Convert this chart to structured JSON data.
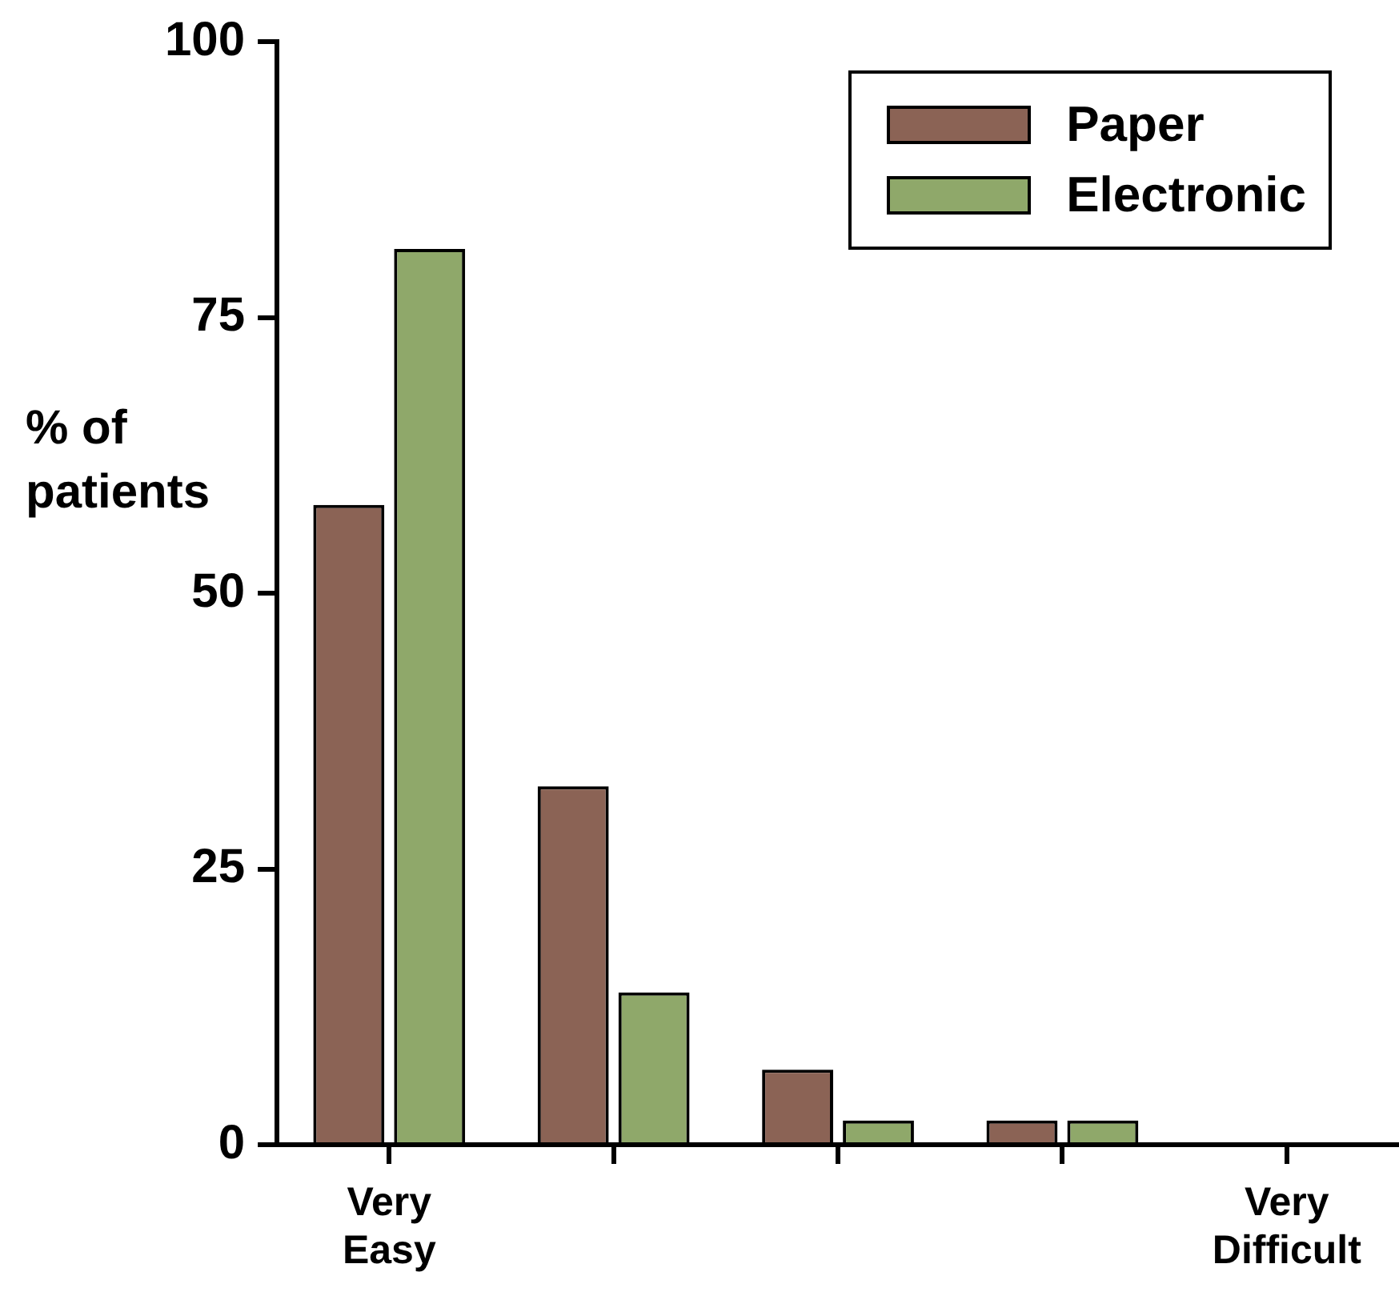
{
  "chart_data": {
    "type": "bar",
    "ylabel": "% of patients",
    "categories": [
      "Very Easy",
      null,
      null,
      null,
      "Very Difficult"
    ],
    "series": [
      {
        "name": "Paper",
        "color": "#8b6355",
        "values": [
          58,
          32.5,
          6.8,
          2.2,
          0
        ]
      },
      {
        "name": "Electronic",
        "color": "#8fa86a",
        "values": [
          81.2,
          13.8,
          2.2,
          2.2,
          0
        ]
      }
    ],
    "ylim": [
      0,
      100
    ],
    "yticks": [
      0,
      25,
      50,
      75,
      100
    ],
    "grid": false,
    "legend": "top right"
  }
}
